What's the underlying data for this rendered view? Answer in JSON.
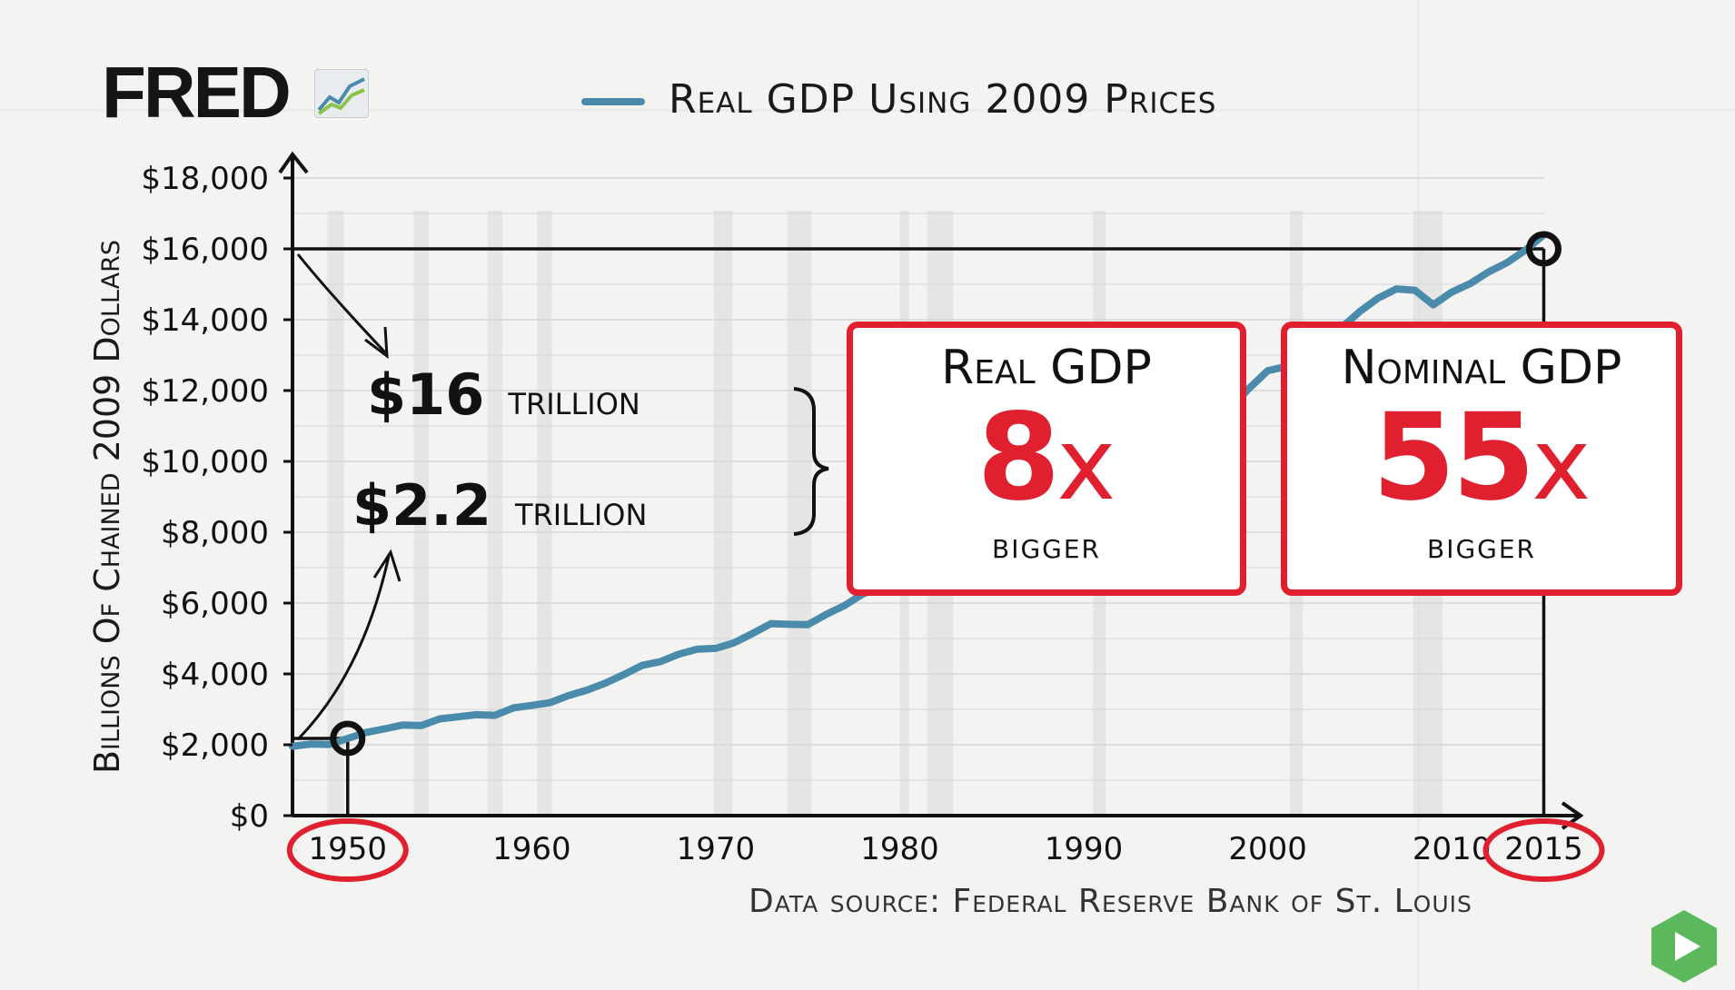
{
  "logo": {
    "text": "FRED",
    "icon": "chart-line-icon"
  },
  "legend": {
    "label": "Real GDP Using 2009 Prices",
    "color": "#4a8bab"
  },
  "chart_data": {
    "type": "line",
    "title": "",
    "xlabel": "",
    "ylabel": "Billions Of Chained 2009 Dollars",
    "xlim": [
      1947,
      2017
    ],
    "ylim": [
      0,
      18000
    ],
    "x_ticks": [
      1950,
      1960,
      1970,
      1980,
      1990,
      2000,
      2010,
      2015
    ],
    "y_ticks": [
      {
        "value": 0,
        "label": "$0"
      },
      {
        "value": 2000,
        "label": "$2,000"
      },
      {
        "value": 4000,
        "label": "$4,000"
      },
      {
        "value": 6000,
        "label": "$6,000"
      },
      {
        "value": 8000,
        "label": "$8,000"
      },
      {
        "value": 10000,
        "label": "$10,000"
      },
      {
        "value": 12000,
        "label": "$12,000"
      },
      {
        "value": 14000,
        "label": "$14,000"
      },
      {
        "value": 16000,
        "label": "$16,000"
      },
      {
        "value": 18000,
        "label": "$18,000"
      }
    ],
    "series": [
      {
        "name": "Real GDP Using 2009 Prices",
        "color": "#4a8bab",
        "x": [
          1947,
          1948,
          1949,
          1950,
          1951,
          1952,
          1953,
          1954,
          1955,
          1956,
          1957,
          1958,
          1959,
          1960,
          1961,
          1962,
          1963,
          1964,
          1965,
          1966,
          1967,
          1968,
          1969,
          1970,
          1971,
          1972,
          1973,
          1974,
          1975,
          1976,
          1977,
          1978,
          1979,
          1980,
          1981,
          1982,
          1983,
          1984,
          1985,
          1986,
          1987,
          1988,
          1989,
          1990,
          1991,
          1992,
          1993,
          1994,
          1995,
          1996,
          1997,
          1998,
          1999,
          2000,
          2001,
          2002,
          2003,
          2004,
          2005,
          2006,
          2007,
          2008,
          2009,
          2010,
          2011,
          2012,
          2013,
          2014,
          2015
        ],
        "y": [
          1960,
          2020,
          2010,
          2180,
          2350,
          2450,
          2560,
          2540,
          2730,
          2790,
          2850,
          2830,
          3040,
          3110,
          3190,
          3390,
          3540,
          3740,
          3980,
          4240,
          4350,
          4560,
          4700,
          4720,
          4880,
          5140,
          5420,
          5400,
          5390,
          5680,
          5930,
          6260,
          6460,
          6450,
          6620,
          6490,
          6790,
          7280,
          7590,
          7860,
          8130,
          8470,
          8790,
          8950,
          8930,
          9270,
          9520,
          9900,
          10160,
          10550,
          11030,
          11520,
          12070,
          12560,
          12680,
          12910,
          13270,
          13770,
          14230,
          14610,
          14870,
          14830,
          14420,
          14780,
          15020,
          15350,
          15610,
          15960,
          16400
        ]
      }
    ],
    "recession_bands": [
      [
        1948.9,
        1949.8
      ],
      [
        1953.6,
        1954.4
      ],
      [
        1957.6,
        1958.4
      ],
      [
        1960.3,
        1961.1
      ],
      [
        1969.9,
        1970.9
      ],
      [
        1973.9,
        1975.2
      ],
      [
        1980.0,
        1980.5
      ],
      [
        1981.5,
        1982.9
      ],
      [
        1990.5,
        1991.2
      ],
      [
        2001.2,
        2001.9
      ],
      [
        2007.9,
        2009.5
      ]
    ],
    "markers": [
      {
        "x": 1950,
        "y": 2180
      },
      {
        "x": 2015,
        "y": 16000
      }
    ],
    "circled_years": [
      1950,
      2015
    ]
  },
  "annotations": {
    "high": {
      "value": "$16",
      "unit": "trillion"
    },
    "low": {
      "value": "$2.2",
      "unit": "trillion"
    }
  },
  "cards": [
    {
      "title": "Real GDP",
      "value": "8",
      "suffix": "x",
      "sub": "bigger"
    },
    {
      "title": "Nominal GDP",
      "value": "55",
      "suffix": "x",
      "sub": "bigger"
    }
  ],
  "source": "Data source:   Federal Reserve Bank of St. Louis",
  "play_badge": {
    "icon": "play-icon",
    "color": "#5cb85c"
  }
}
